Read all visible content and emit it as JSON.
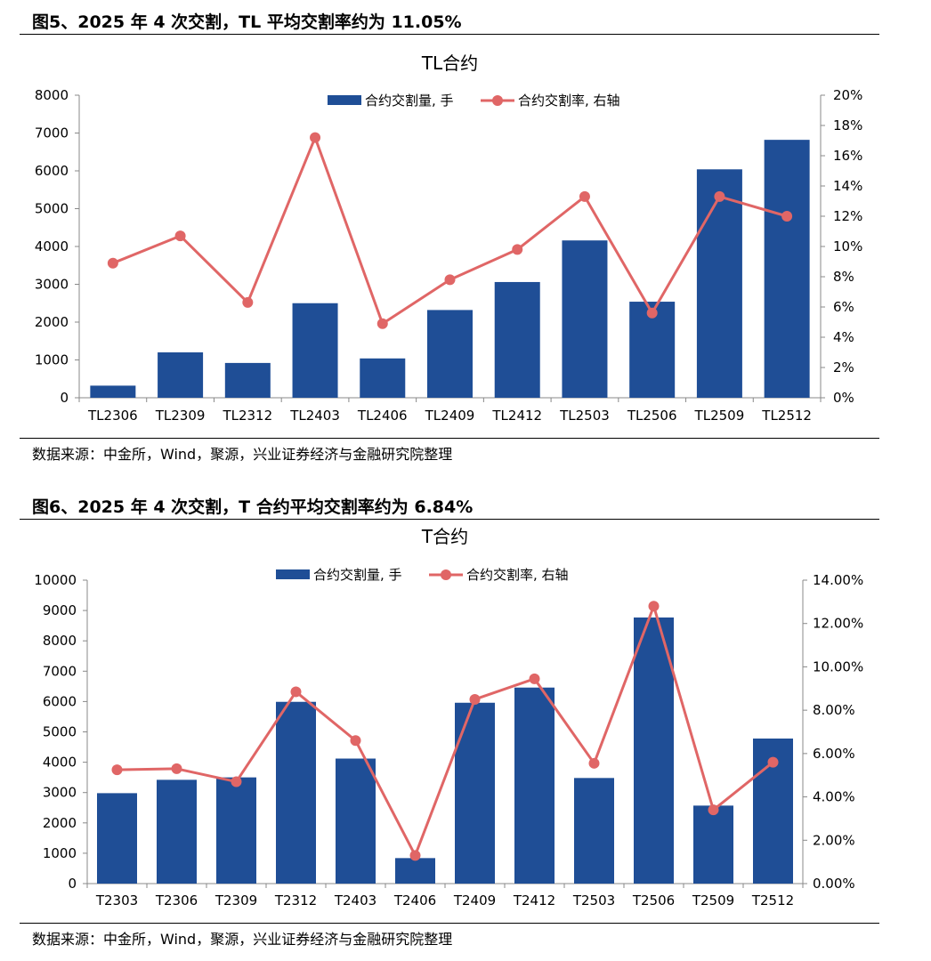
{
  "figures": [
    {
      "heading": "图5、2025 年 4 次交割，TL 平均交割率约为 11.05%",
      "source": "数据来源：中金所，Wind，聚源，兴业证券经济与金融研究院整理"
    },
    {
      "heading": "图6、2025 年 4 次交割，T 合约平均交割率约为 6.84%",
      "source": "数据来源：中金所，Wind，聚源，兴业证券经济与金融研究院整理"
    }
  ],
  "colors": {
    "bar": "#1f4e96",
    "line": "#e06666"
  },
  "chart_data": [
    {
      "type": "bar+line",
      "title": "TL合约",
      "categories": [
        "TL2306",
        "TL2309",
        "TL2312",
        "TL2403",
        "TL2406",
        "TL2409",
        "TL2412",
        "TL2503",
        "TL2506",
        "TL2509",
        "TL2512"
      ],
      "series": [
        {
          "name": "合约交割量, 手",
          "type": "bar",
          "axis": "left",
          "values": [
            320,
            1200,
            920,
            2500,
            1040,
            2320,
            3060,
            4160,
            2540,
            6040,
            6820
          ]
        },
        {
          "name": "合约交割率, 右轴",
          "type": "line",
          "axis": "right",
          "values": [
            8.9,
            10.7,
            6.3,
            17.2,
            4.9,
            7.8,
            9.8,
            13.3,
            5.6,
            13.3,
            12.0
          ]
        }
      ],
      "ylim_left": [
        0,
        8000
      ],
      "left_step": 1000,
      "left_ticks": [
        "0",
        "1000",
        "2000",
        "3000",
        "4000",
        "5000",
        "6000",
        "7000",
        "8000"
      ],
      "ylim_right": [
        0,
        20
      ],
      "right_step": 2,
      "right_ticks": [
        "0%",
        "2%",
        "4%",
        "6%",
        "8%",
        "10%",
        "12%",
        "14%",
        "16%",
        "18%",
        "20%"
      ],
      "legend": "top-center"
    },
    {
      "type": "bar+line",
      "title": "T合约",
      "categories": [
        "T2303",
        "T2306",
        "T2309",
        "T2312",
        "T2403",
        "T2406",
        "T2409",
        "T2412",
        "T2503",
        "T2506",
        "T2509",
        "T2512"
      ],
      "series": [
        {
          "name": "合约交割量, 手",
          "type": "bar",
          "axis": "left",
          "values": [
            2980,
            3420,
            3500,
            5990,
            4120,
            840,
            5960,
            6460,
            3480,
            8770,
            2570,
            4780
          ]
        },
        {
          "name": "合约交割率, 右轴",
          "type": "line",
          "axis": "right",
          "values": [
            5.25,
            5.3,
            4.7,
            8.85,
            6.6,
            1.3,
            8.5,
            9.45,
            5.55,
            12.8,
            3.4,
            5.6
          ]
        }
      ],
      "ylim_left": [
        0,
        10000
      ],
      "left_step": 1000,
      "left_ticks": [
        "0",
        "1000",
        "2000",
        "3000",
        "4000",
        "5000",
        "6000",
        "7000",
        "8000",
        "9000",
        "10000"
      ],
      "ylim_right": [
        0,
        14
      ],
      "right_step": 2,
      "right_ticks": [
        "0.00%",
        "2.00%",
        "4.00%",
        "6.00%",
        "8.00%",
        "10.00%",
        "12.00%",
        "14.00%"
      ],
      "legend": "top-center"
    }
  ]
}
